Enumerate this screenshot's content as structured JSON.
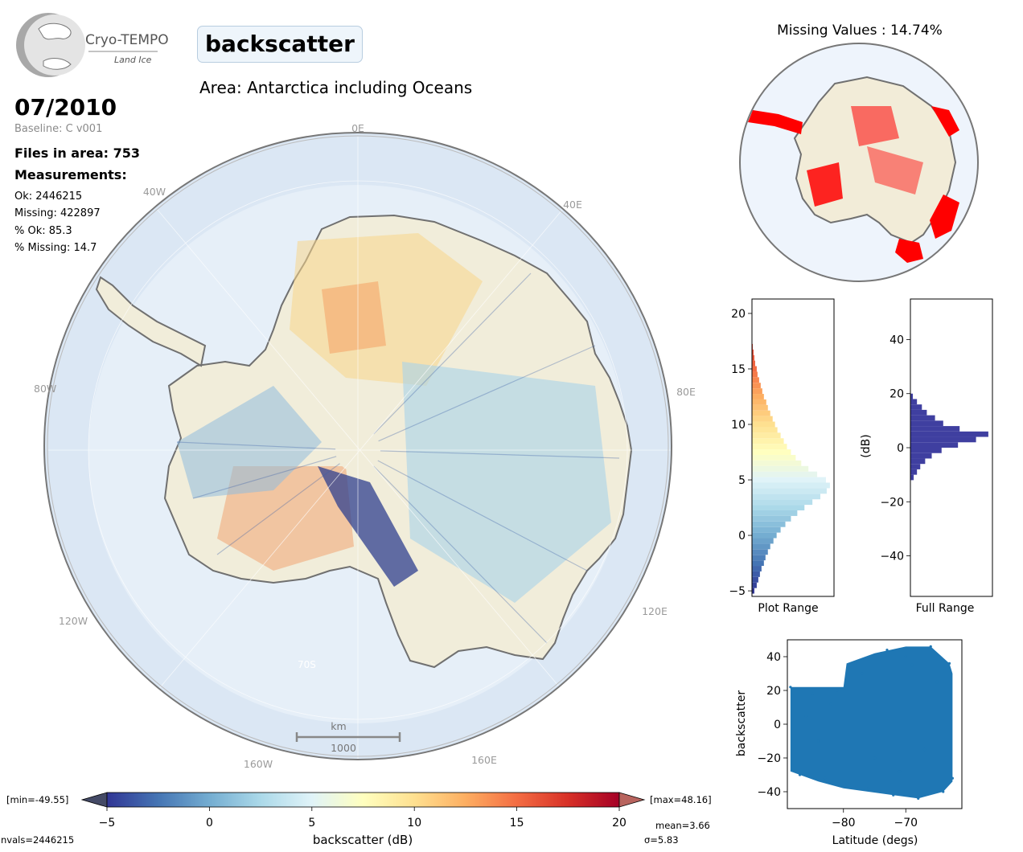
{
  "header": {
    "logo_name": "Cryo-TEMPO",
    "logo_sub": "Land Ice",
    "variable": "backscatter",
    "area": "Area: Antarctica including Oceans",
    "date": "07/2010",
    "baseline": "Baseline: C v001",
    "files": "Files in area: 753",
    "measurements_label": "Measurements:",
    "stats": [
      "Ok: 2446215",
      "Missing: 422897",
      "% Ok: 85.3",
      "% Missing: 14.7"
    ]
  },
  "map": {
    "lon_labels": [
      "0E",
      "40E",
      "80E",
      "120E",
      "160E",
      "160W",
      "120W",
      "80W",
      "40W"
    ],
    "lat_label": "70S",
    "scale_unit": "km",
    "scale_value": "1000",
    "colors": {
      "ocean": "#dbe7f4",
      "land": "#f1edda",
      "coast": "#707070"
    }
  },
  "missing_map": {
    "title": "Missing Values : 14.74%",
    "colors": {
      "missing": "#ff0000",
      "land": "#f2ecd8",
      "ocean": "#eef4fc"
    }
  },
  "colorbar": {
    "label": "backscatter (dB)",
    "ticks": [
      "−5",
      "0",
      "5",
      "10",
      "15",
      "20"
    ],
    "min_label": "[min=-49.55]",
    "max_label": "[max=48.16]",
    "nvals": "nvals=2446215",
    "mean": "mean=3.66",
    "sigma": "σ=5.83",
    "range": [
      -5,
      20
    ],
    "colors": [
      "#313695",
      "#4575b4",
      "#74add1",
      "#abd9e9",
      "#e0f3f8",
      "#ffffbf",
      "#fee090",
      "#fdae61",
      "#f46d43",
      "#d73027",
      "#a50026"
    ],
    "under_color": "#444a66",
    "over_color": "#b8645e"
  },
  "chart_data": [
    {
      "type": "bar",
      "orientation": "horizontal",
      "title": "",
      "xlabel": "Plot Range",
      "ylabel": "",
      "ylim": [
        -5.5,
        21.3
      ],
      "yticks": [
        "−5",
        "0",
        "5",
        "10",
        "15",
        "20"
      ],
      "tick_values": [
        -5,
        0,
        5,
        10,
        15,
        20
      ],
      "x": [
        -5.0,
        -4.5,
        -4.0,
        -3.5,
        -3.0,
        -2.5,
        -2.0,
        -1.5,
        -1.0,
        -0.5,
        0.0,
        0.5,
        1.0,
        1.5,
        2.0,
        2.5,
        3.0,
        3.5,
        4.0,
        4.5,
        5.0,
        5.5,
        6.0,
        6.5,
        7.0,
        7.5,
        8.0,
        8.5,
        9.0,
        9.5,
        10.0,
        10.5,
        11.0,
        11.5,
        12.0,
        12.5,
        13.0,
        13.5,
        14.0,
        14.5,
        15.0,
        15.5,
        16.0,
        16.5,
        17.0
      ],
      "values": [
        3,
        6,
        8,
        10,
        12,
        15,
        17,
        20,
        23,
        27,
        31,
        36,
        42,
        49,
        57,
        66,
        76,
        86,
        94,
        98,
        93,
        82,
        71,
        62,
        55,
        49,
        44,
        40,
        36,
        32,
        29,
        26,
        23,
        20,
        18,
        15,
        13,
        11,
        9,
        7,
        6,
        4,
        3,
        2,
        1
      ]
    },
    {
      "type": "bar",
      "orientation": "horizontal",
      "title": "",
      "xlabel": "Full Range",
      "ylabel": "(dB)",
      "ylim": [
        -55,
        55
      ],
      "yticks": [
        "−40",
        "−20",
        "0",
        "20",
        "40"
      ],
      "tick_values": [
        -40,
        -20,
        0,
        20,
        40
      ],
      "x": [
        -11,
        -9,
        -7,
        -5,
        -3,
        -1,
        1,
        3,
        5,
        7,
        9,
        11,
        13,
        15,
        17,
        19
      ],
      "values": [
        4,
        8,
        12,
        18,
        26,
        38,
        58,
        80,
        95,
        60,
        40,
        30,
        20,
        14,
        8,
        3
      ]
    },
    {
      "type": "scatter",
      "title": "",
      "xlabel": "Latitude (degs)",
      "ylabel": "backscatter",
      "xlim": [
        -89,
        -61
      ],
      "ylim": [
        -50,
        50
      ],
      "xticks": [
        "−80",
        "−70"
      ],
      "xtick_values": [
        -80,
        -70
      ],
      "yticks": [
        "−40",
        "−20",
        "0",
        "20",
        "40"
      ],
      "ytick_values": [
        -40,
        -20,
        0,
        20,
        40
      ],
      "color": "#1f77b4",
      "x": [
        -88.5,
        -87,
        -85,
        -83,
        -81,
        -79.5,
        -78,
        -76,
        -74,
        -72,
        -70,
        -68,
        -66,
        -64,
        -63,
        -62.5,
        -86,
        -84,
        -82,
        -77,
        -75,
        -73,
        -71,
        -69,
        -67,
        -65
      ],
      "y": [
        22,
        -30,
        18,
        -32,
        20,
        -35,
        36,
        -38,
        42,
        -42,
        40,
        -44,
        46,
        -40,
        36,
        -32,
        5,
        -10,
        12,
        30,
        -20,
        44,
        -28,
        35,
        -15,
        25
      ]
    }
  ]
}
